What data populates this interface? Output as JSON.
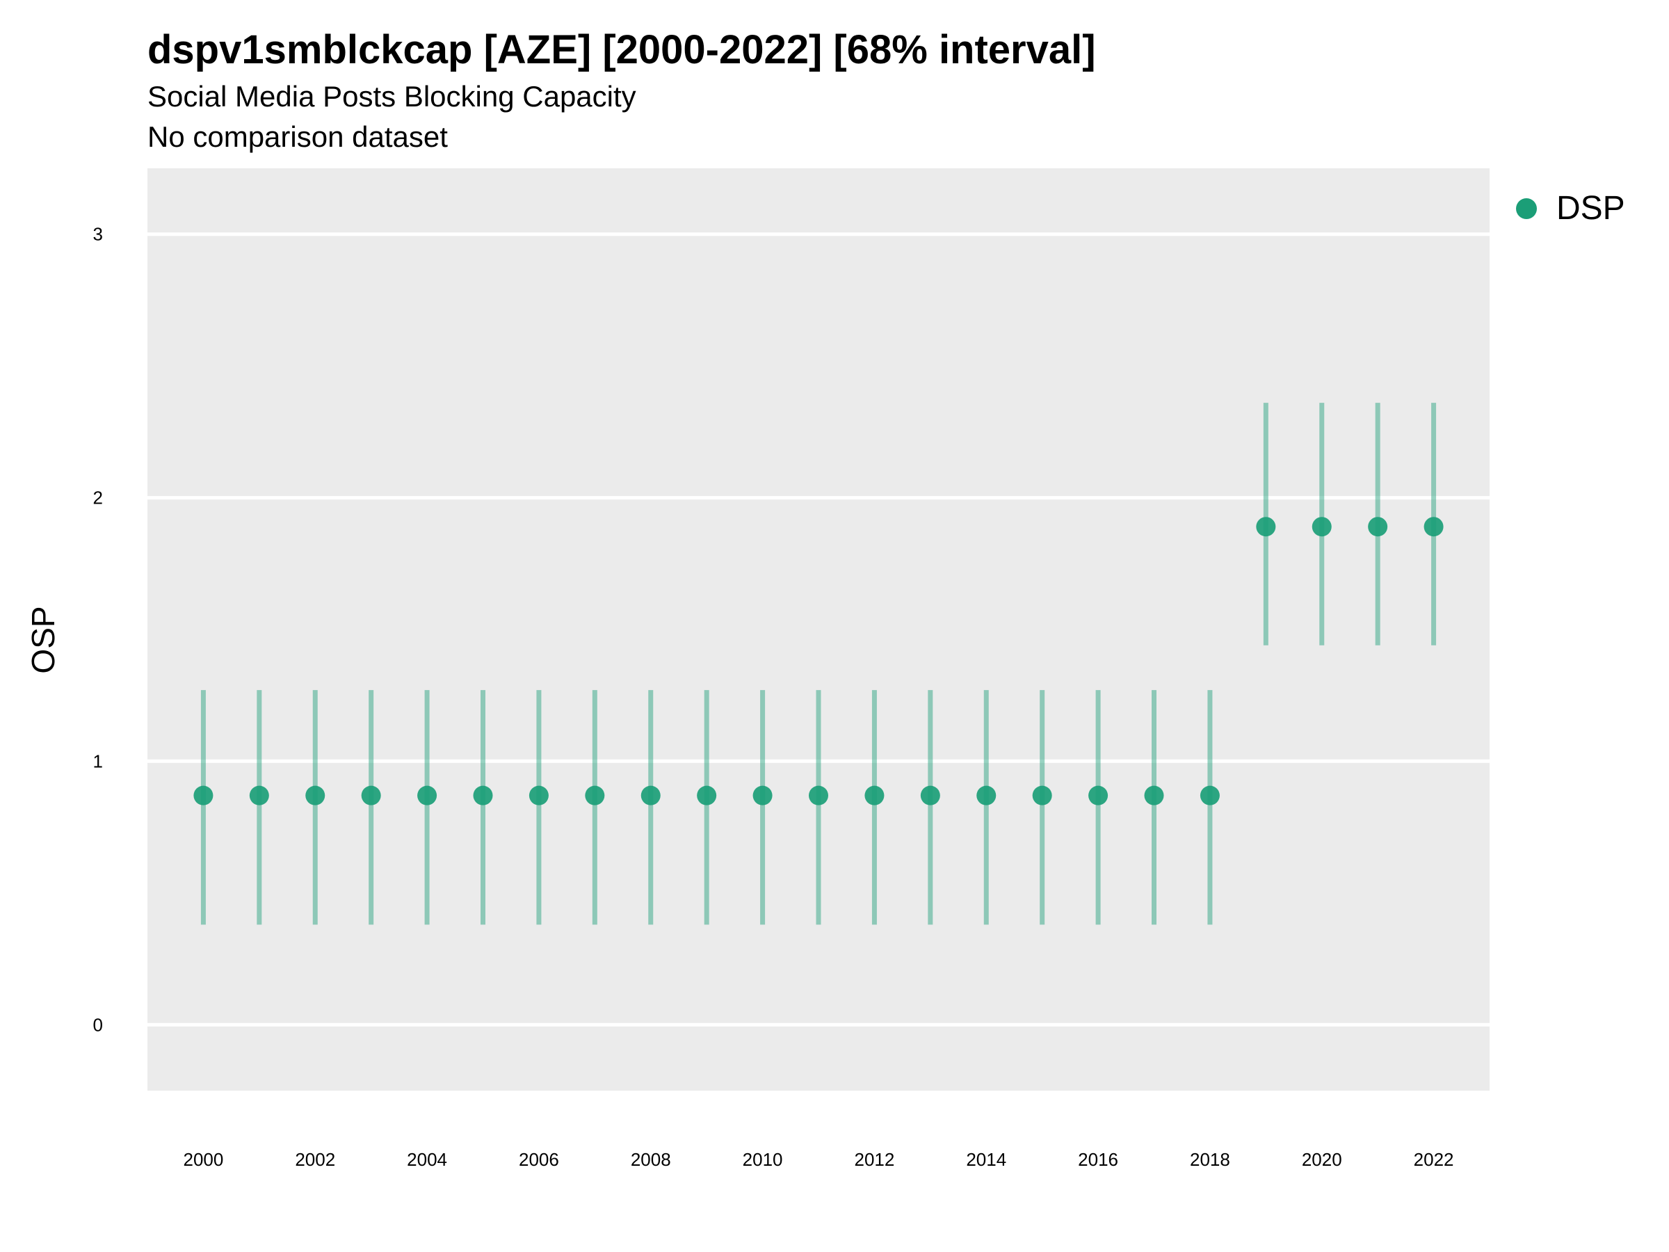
{
  "chart_data": {
    "type": "scatter",
    "title": "dspv1smblckcap [AZE] [2000-2022] [68% interval]",
    "subtitle": "Social Media Posts Blocking Capacity",
    "caption": "No comparison dataset",
    "xlabel": "",
    "ylabel": "OSP",
    "xlim": [
      1999,
      2023
    ],
    "ylim": [
      -0.25,
      3.25
    ],
    "xticks": [
      2000,
      2002,
      2004,
      2006,
      2008,
      2010,
      2012,
      2014,
      2016,
      2018,
      2020,
      2022
    ],
    "yticks": [
      0,
      1,
      2,
      3
    ],
    "grid": true,
    "legend_position": "right",
    "series": [
      {
        "name": "DSP",
        "color": "#1b9e77",
        "points": [
          {
            "x": 2000,
            "y": 0.87,
            "lower": 0.38,
            "upper": 1.27
          },
          {
            "x": 2001,
            "y": 0.87,
            "lower": 0.38,
            "upper": 1.27
          },
          {
            "x": 2002,
            "y": 0.87,
            "lower": 0.38,
            "upper": 1.27
          },
          {
            "x": 2003,
            "y": 0.87,
            "lower": 0.38,
            "upper": 1.27
          },
          {
            "x": 2004,
            "y": 0.87,
            "lower": 0.38,
            "upper": 1.27
          },
          {
            "x": 2005,
            "y": 0.87,
            "lower": 0.38,
            "upper": 1.27
          },
          {
            "x": 2006,
            "y": 0.87,
            "lower": 0.38,
            "upper": 1.27
          },
          {
            "x": 2007,
            "y": 0.87,
            "lower": 0.38,
            "upper": 1.27
          },
          {
            "x": 2008,
            "y": 0.87,
            "lower": 0.38,
            "upper": 1.27
          },
          {
            "x": 2009,
            "y": 0.87,
            "lower": 0.38,
            "upper": 1.27
          },
          {
            "x": 2010,
            "y": 0.87,
            "lower": 0.38,
            "upper": 1.27
          },
          {
            "x": 2011,
            "y": 0.87,
            "lower": 0.38,
            "upper": 1.27
          },
          {
            "x": 2012,
            "y": 0.87,
            "lower": 0.38,
            "upper": 1.27
          },
          {
            "x": 2013,
            "y": 0.87,
            "lower": 0.38,
            "upper": 1.27
          },
          {
            "x": 2014,
            "y": 0.87,
            "lower": 0.38,
            "upper": 1.27
          },
          {
            "x": 2015,
            "y": 0.87,
            "lower": 0.38,
            "upper": 1.27
          },
          {
            "x": 2016,
            "y": 0.87,
            "lower": 0.38,
            "upper": 1.27
          },
          {
            "x": 2017,
            "y": 0.87,
            "lower": 0.38,
            "upper": 1.27
          },
          {
            "x": 2018,
            "y": 0.87,
            "lower": 0.38,
            "upper": 1.27
          },
          {
            "x": 2019,
            "y": 1.89,
            "lower": 1.44,
            "upper": 2.36
          },
          {
            "x": 2020,
            "y": 1.89,
            "lower": 1.44,
            "upper": 2.36
          },
          {
            "x": 2021,
            "y": 1.89,
            "lower": 1.44,
            "upper": 2.36
          },
          {
            "x": 2022,
            "y": 1.89,
            "lower": 1.44,
            "upper": 2.36
          }
        ]
      }
    ]
  }
}
